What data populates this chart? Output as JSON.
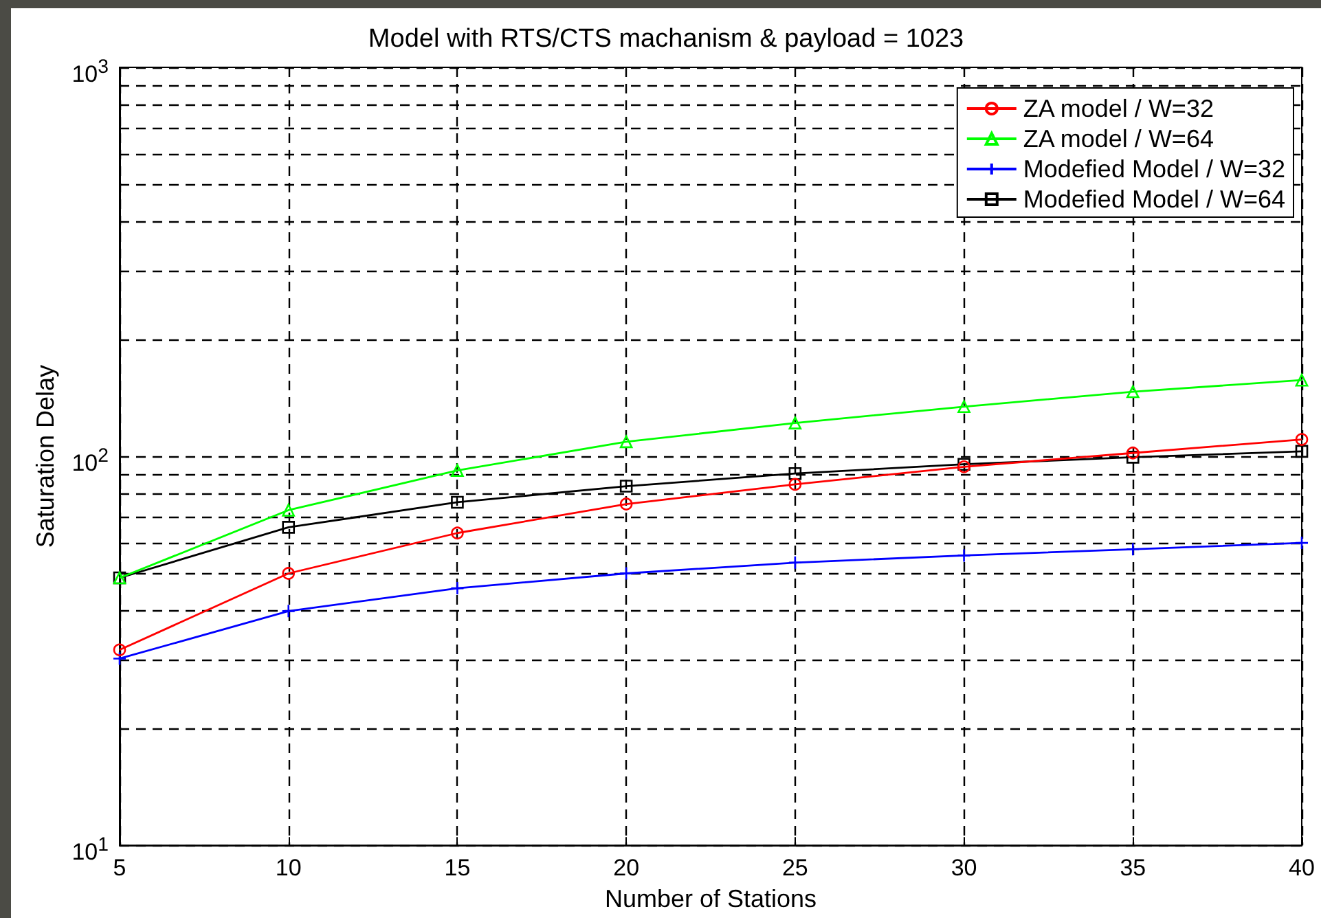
{
  "chart_data": {
    "type": "line",
    "title": "Model with RTS/CTS machanism & payload = 1023",
    "xlabel": "Number of Stations",
    "ylabel": "Saturation Delay",
    "x": [
      5,
      10,
      15,
      20,
      25,
      30,
      35,
      40
    ],
    "series": [
      {
        "name": "ZA model / W=32",
        "color": "#ff0000",
        "marker": "circle",
        "values": [
          31.8,
          50,
          63.5,
          75.4,
          84.7,
          94,
          102,
          110.5
        ]
      },
      {
        "name": "ZA model / W=64",
        "color": "#00ff00",
        "marker": "triangle",
        "values": [
          48.7,
          72.7,
          92,
          109,
          121.8,
          134.2,
          146.6,
          157
        ]
      },
      {
        "name": "Modefied Model / W=32",
        "color": "#0000ff",
        "marker": "cross",
        "values": [
          30.2,
          40,
          45.8,
          50,
          53.3,
          55.6,
          57.7,
          59.9
        ]
      },
      {
        "name": "Modefied Model / W=64",
        "color": "#000000",
        "marker": "square",
        "values": [
          48.7,
          65.7,
          76.2,
          83.8,
          90.3,
          95.4,
          99.5,
          103
        ]
      }
    ],
    "xlim": [
      5,
      40
    ],
    "xticks": [
      5,
      10,
      15,
      20,
      25,
      30,
      35,
      40
    ],
    "log": "y",
    "ylim": [
      10,
      1000
    ],
    "yticks": [
      {
        "value": 10,
        "label": "10$^{1}$"
      },
      {
        "value": 20,
        "label": null
      },
      {
        "value": 30,
        "label": null
      },
      {
        "value": 40,
        "label": null
      },
      {
        "value": 50,
        "label": null
      },
      {
        "value": 60,
        "label": null
      },
      {
        "value": 70,
        "label": null
      },
      {
        "value": 80,
        "label": null
      },
      {
        "value": 90,
        "label": null
      },
      {
        "value": 100,
        "label": "10$^{2}$"
      },
      {
        "value": 200,
        "label": null
      },
      {
        "value": 300,
        "label": null
      },
      {
        "value": 400,
        "label": null
      },
      {
        "value": 500,
        "label": null
      },
      {
        "value": 600,
        "label": null
      },
      {
        "value": 700,
        "label": null
      },
      {
        "value": 800,
        "label": null
      },
      {
        "value": 900,
        "label": null
      },
      {
        "value": 1000,
        "label": "10$^{3}$"
      }
    ],
    "grid": true,
    "legend": "top right",
    "line_style": "solid"
  }
}
